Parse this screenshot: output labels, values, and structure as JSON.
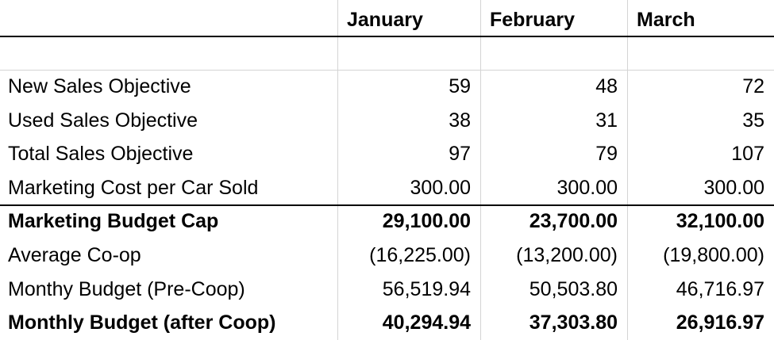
{
  "table": {
    "columns": [
      "January",
      "February",
      "March"
    ],
    "rows": [
      {
        "label": "New Sales Objective",
        "values": [
          "59",
          "48",
          "72"
        ]
      },
      {
        "label": "Used Sales Objective",
        "values": [
          "38",
          "31",
          "35"
        ]
      },
      {
        "label": "Total Sales Objective",
        "values": [
          "97",
          "79",
          "107"
        ]
      },
      {
        "label": "Marketing Cost per Car Sold",
        "values": [
          "300.00",
          "300.00",
          "300.00"
        ]
      },
      {
        "label": "Marketing Budget Cap",
        "values": [
          "29,100.00",
          "23,700.00",
          "32,100.00"
        ],
        "bold": true
      },
      {
        "label": "Average Co-op",
        "values": [
          "(16,225.00)",
          "(13,200.00)",
          "(19,800.00)"
        ]
      },
      {
        "label": "Monthy Budget (Pre-Coop)",
        "values": [
          "56,519.94",
          "50,503.80",
          "46,716.97"
        ]
      },
      {
        "label": "Monthly Budget (after Coop)",
        "values": [
          "40,294.94",
          "37,303.80",
          "26,916.97"
        ],
        "bold": true
      }
    ]
  }
}
